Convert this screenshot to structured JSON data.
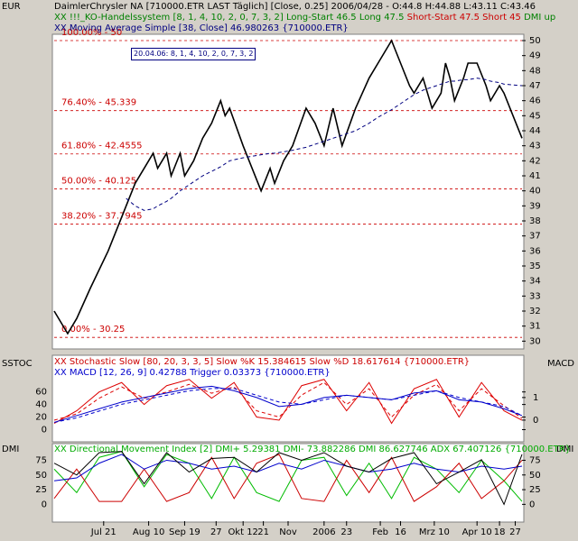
{
  "header": {
    "price_line": "DaimlerChrysler NA [710000.ETR LAST Täglich] [Close, 0.25] 2006/04/28 - O:44.8 H:44.88 L:43.11 C:43.46",
    "system_name": "XX !!!_KO-Handelssystem [8, 1, 4, 10, 2, 0, 7, 3, 2]",
    "long_text": "Long-Start 46.5 Long 47.5",
    "short_text": "Short-Start 47.5 Short 45",
    "dmi_text": "DMI up",
    "ma_line": "XX Moving Average Simple [38, Close] 46.980263 {710000.ETR}",
    "signal_box": "20.04.06: 8, 1, 4, 10, 2, 0, 7, 3, 2",
    "stoch_line": "XX Stochastic Slow [80, 20, 3, 3, 5] Slow %K 15.384615 Slow %D 18.617614 {710000.ETR}",
    "macd_line": "XX MACD [12, 26, 9] 0.42788 Trigger 0.03373 {710000.ETR}",
    "dmi_line": "XX Directional Movement Index [2] DMI+ 5.29381 DMI- 73.882286 DMI 86.627746 ADX 67.407126 {710000.ETR}",
    "eur_label": "EUR",
    "sstoc_label": "SSTOC",
    "macd_label": "MACD",
    "dmi_left": "DMI",
    "dmi_right": "DMI"
  },
  "chart_data": [
    {
      "type": "line",
      "xlim": [
        0,
        104
      ],
      "ylim": [
        29.6,
        50.3
      ],
      "yticks": [
        30,
        31,
        32,
        33,
        34,
        35,
        36,
        37,
        38,
        39,
        40,
        41,
        42,
        43,
        44,
        45,
        46,
        47,
        48,
        49,
        50
      ],
      "x": [
        0,
        3,
        5,
        8,
        12,
        16,
        18,
        20,
        22,
        23,
        25,
        26,
        28,
        29,
        31,
        33,
        35,
        37,
        38,
        39,
        42,
        44,
        46,
        48,
        49,
        51,
        53,
        56,
        58,
        60,
        62,
        64,
        67,
        70,
        72,
        75,
        77,
        79,
        80,
        82,
        84,
        86,
        87,
        88,
        89,
        91,
        92,
        94,
        96,
        97,
        99,
        100,
        104
      ],
      "series": [
        {
          "color": "#000000",
          "values": [
            32,
            30.5,
            31.5,
            33.5,
            36,
            39,
            40.5,
            41.5,
            42.5,
            41.5,
            42.5,
            41,
            42.5,
            41,
            42,
            43.5,
            44.5,
            46,
            45,
            45.5,
            43,
            41.5,
            40,
            41.5,
            40.5,
            42,
            43,
            45.5,
            44.5,
            43,
            45.5,
            43,
            45.5,
            47.5,
            48.5,
            50,
            48.5,
            47,
            46.5,
            47.5,
            45.5,
            46.5,
            48.5,
            47.5,
            46,
            47.5,
            48.5,
            48.5,
            47,
            46,
            47,
            46.5,
            43.5
          ]
        },
        {
          "color": "#000080",
          "dash": true,
          "values": [
            null,
            null,
            null,
            null,
            null,
            39.5,
            39,
            38.7,
            38.8,
            39,
            39.3,
            39.5,
            40,
            40.2,
            40.6,
            41,
            41.3,
            41.6,
            41.8,
            42,
            42.2,
            42.3,
            42.4,
            42.5,
            42.5,
            42.6,
            42.7,
            42.9,
            43.1,
            43.3,
            43.5,
            43.7,
            44,
            44.5,
            44.9,
            45.4,
            45.8,
            46.2,
            46.4,
            46.7,
            46.9,
            47.1,
            47.2,
            47.3,
            47.3,
            47.4,
            47.4,
            47.5,
            47.4,
            47.3,
            47.2,
            47.1,
            47
          ]
        }
      ],
      "levels": [
        {
          "value": 50,
          "label": "100.00% - 50"
        },
        {
          "value": 45.339,
          "label": "76.40% - 45.339"
        },
        {
          "value": 42.4555,
          "label": "61.80% - 42.4555"
        },
        {
          "value": 40.125,
          "label": "50.00% - 40.125"
        },
        {
          "value": 37.7945,
          "label": "38.20% - 37.7945"
        },
        {
          "value": 30.25,
          "label": "0.00% - 30.25"
        }
      ],
      "level_color": "#cc0000"
    },
    {
      "type": "line",
      "xlim": [
        0,
        104
      ],
      "ylim": [
        -18,
        117
      ],
      "yticks": [
        0,
        20,
        40,
        60
      ],
      "y2lim": [
        -0.92,
        2.83
      ],
      "y2ticks": [
        0,
        1
      ],
      "x": [
        0,
        5,
        10,
        15,
        20,
        25,
        30,
        35,
        40,
        45,
        50,
        55,
        60,
        65,
        70,
        75,
        80,
        85,
        90,
        95,
        100,
        104
      ],
      "series": [
        {
          "color": "#dd0000",
          "values": [
            10,
            30,
            60,
            75,
            40,
            70,
            80,
            50,
            75,
            20,
            15,
            70,
            80,
            30,
            75,
            10,
            65,
            80,
            20,
            75,
            30,
            15
          ]
        },
        {
          "color": "#dd0000",
          "dash": true,
          "values": [
            15,
            25,
            50,
            68,
            50,
            60,
            72,
            58,
            68,
            30,
            20,
            55,
            75,
            40,
            65,
            20,
            55,
            72,
            30,
            65,
            38,
            18
          ]
        },
        {
          "color": "#0000cc",
          "axis": "y2",
          "values": [
            -0.1,
            0.2,
            0.5,
            0.8,
            1.0,
            1.2,
            1.4,
            1.5,
            1.3,
            1.0,
            0.6,
            0.7,
            1.0,
            1.1,
            1.0,
            0.9,
            1.2,
            1.3,
            0.9,
            0.8,
            0.5,
            0.2
          ]
        },
        {
          "color": "#0000cc",
          "axis": "y2",
          "dash": true,
          "values": [
            -0.1,
            0.1,
            0.4,
            0.7,
            0.9,
            1.1,
            1.3,
            1.4,
            1.4,
            1.1,
            0.8,
            0.7,
            0.9,
            1.1,
            1.0,
            0.9,
            1.1,
            1.3,
            1.0,
            0.8,
            0.6,
            0.2
          ]
        }
      ]
    },
    {
      "type": "line",
      "xlim": [
        0,
        104
      ],
      "ylim": [
        -28.6,
        101.8
      ],
      "yticks": [
        0,
        25,
        50,
        75
      ],
      "x": [
        0,
        5,
        10,
        15,
        20,
        25,
        30,
        35,
        40,
        45,
        50,
        55,
        60,
        65,
        70,
        75,
        80,
        85,
        90,
        95,
        100,
        104
      ],
      "series": [
        {
          "color": "#00bb00",
          "values": [
            60,
            20,
            80,
            90,
            30,
            85,
            70,
            10,
            80,
            20,
            5,
            75,
            80,
            15,
            70,
            10,
            80,
            60,
            20,
            75,
            40,
            5
          ]
        },
        {
          "color": "#cc0000",
          "values": [
            10,
            60,
            5,
            5,
            60,
            5,
            20,
            80,
            10,
            70,
            85,
            10,
            5,
            75,
            20,
            80,
            5,
            30,
            70,
            10,
            40,
            75
          ]
        },
        {
          "color": "#0000cc",
          "values": [
            40,
            45,
            70,
            85,
            60,
            75,
            70,
            60,
            65,
            55,
            70,
            60,
            75,
            65,
            55,
            60,
            70,
            60,
            55,
            65,
            60,
            65
          ]
        },
        {
          "color": "#000000",
          "values": [
            70,
            50,
            88,
            90,
            35,
            88,
            55,
            78,
            80,
            55,
            88,
            75,
            88,
            65,
            55,
            78,
            88,
            35,
            55,
            76,
            0,
            85
          ]
        }
      ],
      "xticks": [
        {
          "value": 11,
          "label": "Jul 21"
        },
        {
          "value": 21,
          "label": "Aug 10"
        },
        {
          "value": 29,
          "label": "Sep 19"
        },
        {
          "value": 36,
          "label": "27"
        },
        {
          "value": 42,
          "label": "Okt 12"
        },
        {
          "value": 46.5,
          "label": "21"
        },
        {
          "value": 52,
          "label": "Nov"
        },
        {
          "value": 60,
          "label": "2006"
        },
        {
          "value": 65,
          "label": "23"
        },
        {
          "value": 72.5,
          "label": "Feb"
        },
        {
          "value": 77,
          "label": "16"
        },
        {
          "value": 84.5,
          "label": "Mrz 10"
        },
        {
          "value": 94,
          "label": "Apr 10"
        },
        {
          "value": 99,
          "label": "18"
        },
        {
          "value": 102.5,
          "label": "27"
        }
      ]
    }
  ]
}
